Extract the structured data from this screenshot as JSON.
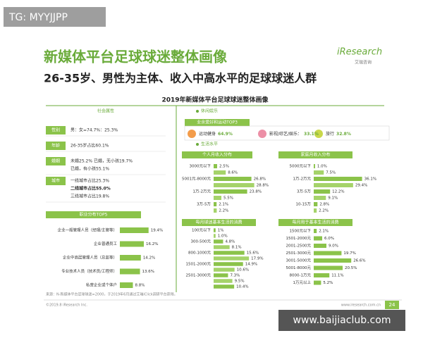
{
  "watermark_top": "TG: MYYJJPP",
  "header": {
    "title": "新媒体平台足球球迷整体画像",
    "subtitle": "26-35岁、男性为主体、收入中高水平的足球球迷人群",
    "logo": "iResearch",
    "logo_sub": "艾瑞咨询"
  },
  "figure_title": "2019年新媒体平台足球球迷整体画像",
  "social": {
    "heading": "社会属性",
    "rows": [
      {
        "label": "性别",
        "lines": [
          "男：女=74.7%：25.3%"
        ]
      },
      {
        "label": "年龄",
        "lines": [
          "26-35岁占比60.1%"
        ]
      },
      {
        "label": "婚姻",
        "lines": [
          "未婚25.2%   已婚，无小孩19.7%",
          "已婚，有小孩55.1%"
        ]
      },
      {
        "label": "城市",
        "lines": [
          "一线城市占比25.3%",
          "二线城市占比55.0%",
          "三线城市占比19.8%"
        ]
      }
    ]
  },
  "leisure": {
    "heading": "休闲娱乐",
    "box": "业余爱好和运动TOP3",
    "items": [
      {
        "name": "运动健身",
        "value": "64.9%"
      },
      {
        "name": "影视/综艺/娱乐：",
        "value": "33.1%"
      },
      {
        "name": "旅行",
        "value": "32.8%"
      }
    ]
  },
  "living_heading": "生活水平",
  "panels": [
    {
      "title": "职业分布TOP5",
      "categories": [
        "企业一般管理人员（经理/主管等）",
        "企业普通员工",
        "企业中高层管理人员（总监等）",
        "专业技术人员（技术员/工程师）",
        "私营企业或个体户"
      ],
      "values": [
        19.4,
        16.2,
        14.2,
        13.6,
        8.8
      ],
      "value_labels": [
        "19.4%",
        "16.2%",
        "14.2%",
        "13.6%",
        "8.8%"
      ]
    },
    {
      "title": "个人月收入分布",
      "categories": [
        "3000元以下",
        null,
        "5001元-8000元",
        null,
        "1万-2万元",
        null,
        "3万-5万",
        null
      ],
      "values": [
        2.5,
        8.6,
        26.8,
        28.8,
        23.8,
        5.5,
        2.1,
        2.2
      ],
      "value_labels": [
        "2.5%",
        "8.6%",
        "26.8%",
        "28.8%",
        "23.8%",
        "5.5%",
        "2.1%",
        "2.2%"
      ]
    },
    {
      "title": "家庭月收入分布",
      "categories": [
        "5000元以下",
        null,
        "1万-2万元",
        null,
        "3万-5万",
        null,
        "10-15万",
        null
      ],
      "values": [
        1.0,
        7.5,
        36.1,
        29.4,
        12.2,
        9.1,
        2.8,
        2.2
      ],
      "value_labels": [
        "1.0%",
        "7.5%",
        "36.1%",
        "29.4%",
        "12.2%",
        "9.1%",
        "2.8%",
        "2.2%"
      ]
    },
    {
      "title": "每月球迷基本生活的消费",
      "categories": [
        "100元以下",
        null,
        "300-500元",
        null,
        "800-1000元",
        null,
        "1501-2000元",
        null,
        "2501-3000元",
        null,
        null
      ],
      "values": [
        1,
        1.0,
        4.8,
        8.1,
        15.6,
        17.9,
        14.9,
        10.6,
        7.3,
        9.5,
        10.4
      ],
      "value_labels": [
        "1%",
        "1.0%",
        "4.8%",
        "8.1%",
        "15.6%",
        "17.9%",
        "14.9%",
        "10.6%",
        "7.3%",
        "9.5%",
        "10.4%"
      ]
    },
    {
      "title": "每月用于基本生活的消费",
      "categories": [
        "1500元以下",
        "1501-2000元",
        "2001-2500元",
        "2501-3000元",
        "3001-5000元",
        "5001-8000元",
        "8000-1万元",
        "1万元以上"
      ],
      "values": [
        2.1,
        6.0,
        9.0,
        19.7,
        26.6,
        20.5,
        11.1,
        5.2
      ],
      "value_labels": [
        "2.1%",
        "6.0%",
        "9.0%",
        "19.7%",
        "26.6%",
        "20.5%",
        "11.1%",
        "5.2%"
      ]
    }
  ],
  "footer": {
    "source": "来源：N-新媒体平台足球球迷=2000，于2019年6月通过艾瑞iClick调研平台获得。",
    "copyright": "©2019.8 iResearch Inc.",
    "url": "www.iresearch.com.cn",
    "page": "24"
  },
  "watermark_bottom": "www.baijiaclub.com"
}
